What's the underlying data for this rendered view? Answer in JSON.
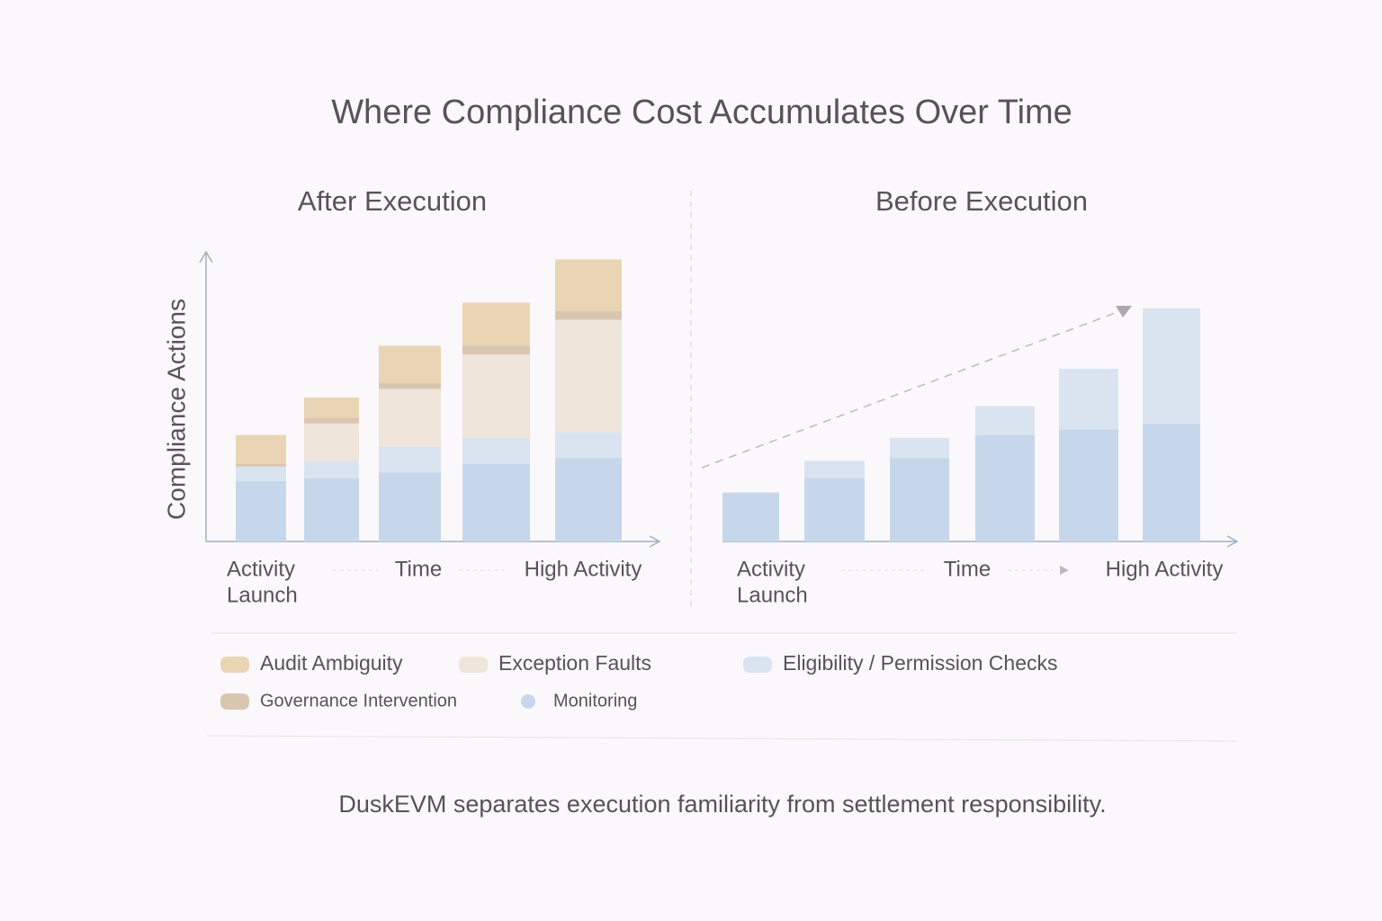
{
  "title": "Where Compliance Cost Accumulates Over Time",
  "caption": "DuskEVM separates execution familiarity from settlement responsibility.",
  "chart_data": [
    {
      "type": "bar",
      "stacked": true,
      "title": "After Execution",
      "y_label": "Compliance Actions",
      "x_start": [
        "Activity",
        "Launch"
      ],
      "x_mid": "Time",
      "x_end": "High Activity",
      "categories": [
        null,
        null,
        null,
        null,
        null
      ],
      "ylim": [
        0,
        100
      ],
      "series": [
        {
          "name": "Monitoring",
          "color": "#c7d7eb",
          "values": [
            21,
            22,
            24,
            27,
            29
          ]
        },
        {
          "name": "Eligibility / Permission Checks",
          "color": "#dae4f0",
          "values": [
            5,
            6,
            9,
            9,
            9
          ]
        },
        {
          "name": "Exception Faults",
          "color": "#efe5da",
          "values": [
            0,
            13,
            20,
            29,
            39
          ]
        },
        {
          "name": "Governance Intervention",
          "color": "#d9c6b1",
          "values": [
            1,
            2,
            2,
            3,
            3
          ]
        },
        {
          "name": "Audit Ambiguity",
          "color": "#e9d5b3",
          "values": [
            10,
            7,
            13,
            15,
            18
          ]
        }
      ]
    },
    {
      "type": "bar",
      "stacked": true,
      "title": "Before Execution",
      "x_start": [
        "Activity",
        "Launch"
      ],
      "x_mid": "Time",
      "x_end": "High Activity",
      "categories": [
        null,
        null,
        null,
        null,
        null,
        null
      ],
      "ylim": [
        0,
        100
      ],
      "series": [
        {
          "color": "#c7d7eb",
          "values": [
            17,
            22,
            29,
            37,
            39,
            41
          ]
        },
        {
          "color": "#dae4f0",
          "values": [
            0,
            6,
            7,
            10,
            21,
            40
          ]
        }
      ]
    }
  ]
}
